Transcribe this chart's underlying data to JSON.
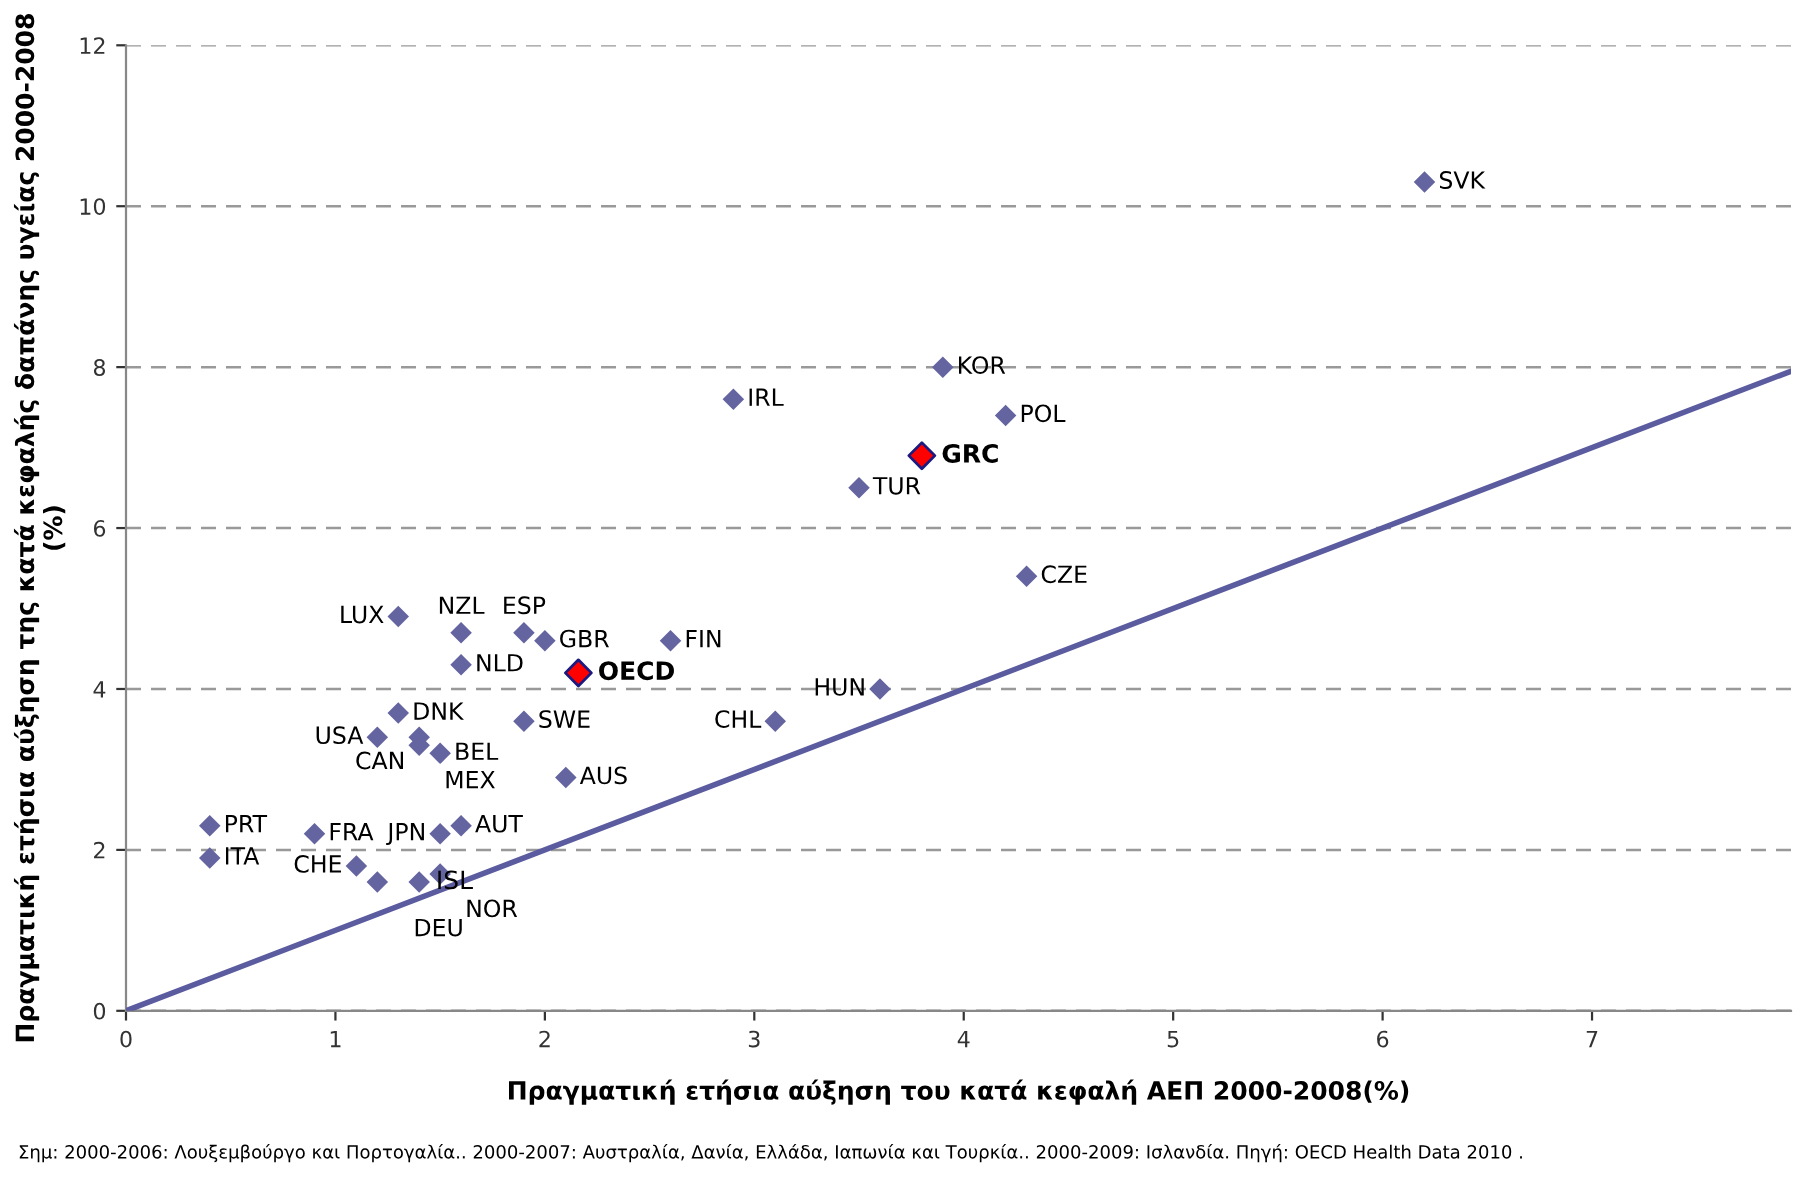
{
  "chart_data": {
    "type": "scatter",
    "xlabel": "Πραγματική ετήσια αύξηση του κατά κεφαλή ΑΕΠ 2000-2008(%)",
    "ylabel": "Πραγματική ετήσια αύξηση της κατά κεφαλής δαπάνης υγείας 2000-2008 (%)",
    "xlim": [
      0,
      7.95
    ],
    "ylim": [
      0,
      12
    ],
    "xticks": [
      0,
      1,
      2,
      3,
      4,
      5,
      6,
      7
    ],
    "yticks": [
      0,
      2,
      4,
      6,
      8,
      10,
      12
    ],
    "grid": "y",
    "legend": false,
    "marker": "diamond",
    "series": [
      {
        "color": "#6464a0",
        "x": [
          6.2,
          3.9,
          4.2,
          2.9,
          3.5,
          4.3,
          2.6,
          3.6,
          3.1,
          1.9,
          2.0,
          1.3,
          1.6,
          1.6,
          1.3,
          1.9,
          1.2,
          1.4,
          1.4,
          1.5,
          2.1,
          1.6,
          1.5,
          0.4,
          0.4,
          0.9,
          1.1,
          1.2,
          1.4,
          1.5
        ],
        "values": [
          10.3,
          8.0,
          7.4,
          7.6,
          6.5,
          5.4,
          4.6,
          4.0,
          3.6,
          4.7,
          4.6,
          4.9,
          4.7,
          4.3,
          3.7,
          3.6,
          3.4,
          3.4,
          3.3,
          3.2,
          2.9,
          2.3,
          2.2,
          2.3,
          1.9,
          2.2,
          1.8,
          1.6,
          1.6,
          1.7
        ]
      },
      {
        "name": "OECD",
        "color": "#ff0000",
        "x": [
          2.16
        ],
        "values": [
          4.2
        ]
      },
      {
        "name": "GRC",
        "color": "#ff0000",
        "x": [
          3.8
        ],
        "values": [
          6.9
        ]
      },
      {
        "type": "line",
        "marker": "none",
        "color": "#5b5b9f",
        "x": [
          0,
          7.95
        ],
        "values": [
          0,
          7.95
        ]
      }
    ],
    "annotations": [
      {
        "text": "SVK",
        "x": 6.2,
        "y": 10.3
      },
      {
        "text": "KOR",
        "x": 3.9,
        "y": 8.0
      },
      {
        "text": "POL",
        "x": 4.2,
        "y": 7.4
      },
      {
        "text": "IRL",
        "x": 2.9,
        "y": 7.6
      },
      {
        "text": "TUR",
        "x": 3.5,
        "y": 6.5
      },
      {
        "text": "CZE",
        "x": 4.3,
        "y": 5.4
      },
      {
        "text": "FIN",
        "x": 2.6,
        "y": 4.6
      },
      {
        "text": "HUN",
        "x": 3.6,
        "y": 4.0
      },
      {
        "text": "CHL",
        "x": 3.1,
        "y": 3.6
      },
      {
        "text": "ESP",
        "x": 1.9,
        "y": 4.7
      },
      {
        "text": "GBR",
        "x": 2.0,
        "y": 4.6
      },
      {
        "text": "LUX",
        "x": 1.3,
        "y": 4.9
      },
      {
        "text": "NZL",
        "x": 1.6,
        "y": 4.7
      },
      {
        "text": "NLD",
        "x": 1.6,
        "y": 4.3
      },
      {
        "text": "DNK",
        "x": 1.3,
        "y": 3.7
      },
      {
        "text": "SWE",
        "x": 1.9,
        "y": 3.6
      },
      {
        "text": "USA",
        "x": 1.2,
        "y": 3.4
      },
      {
        "text": "CAN",
        "x": 1.4,
        "y": 3.4
      },
      {
        "text": "MEX",
        "x": 1.4,
        "y": 3.3
      },
      {
        "text": "BEL",
        "x": 1.5,
        "y": 3.2
      },
      {
        "text": "AUS",
        "x": 2.1,
        "y": 2.9
      },
      {
        "text": "AUT",
        "x": 1.6,
        "y": 2.3
      },
      {
        "text": "JPN",
        "x": 1.5,
        "y": 2.2
      },
      {
        "text": "PRT",
        "x": 0.4,
        "y": 2.3
      },
      {
        "text": "ITA",
        "x": 0.4,
        "y": 1.9
      },
      {
        "text": "FRA",
        "x": 0.9,
        "y": 2.2
      },
      {
        "text": "CHE",
        "x": 1.1,
        "y": 1.8
      },
      {
        "text": "DEU",
        "x": 1.2,
        "y": 1.6
      },
      {
        "text": "ISL",
        "x": 1.4,
        "y": 1.6
      },
      {
        "text": "NOR",
        "x": 1.5,
        "y": 1.7
      },
      "Σημ: 2000-2006: Λουξεμβούργο και Πορτογαλία.. 2000-2007: Αυστραλία, Δανία, Ελλάδα, Ιαπωνία και Τουρκία.. 2000-2009: Ισλανδία. Πηγή: OECD Health Data 2010 ."
    ]
  }
}
